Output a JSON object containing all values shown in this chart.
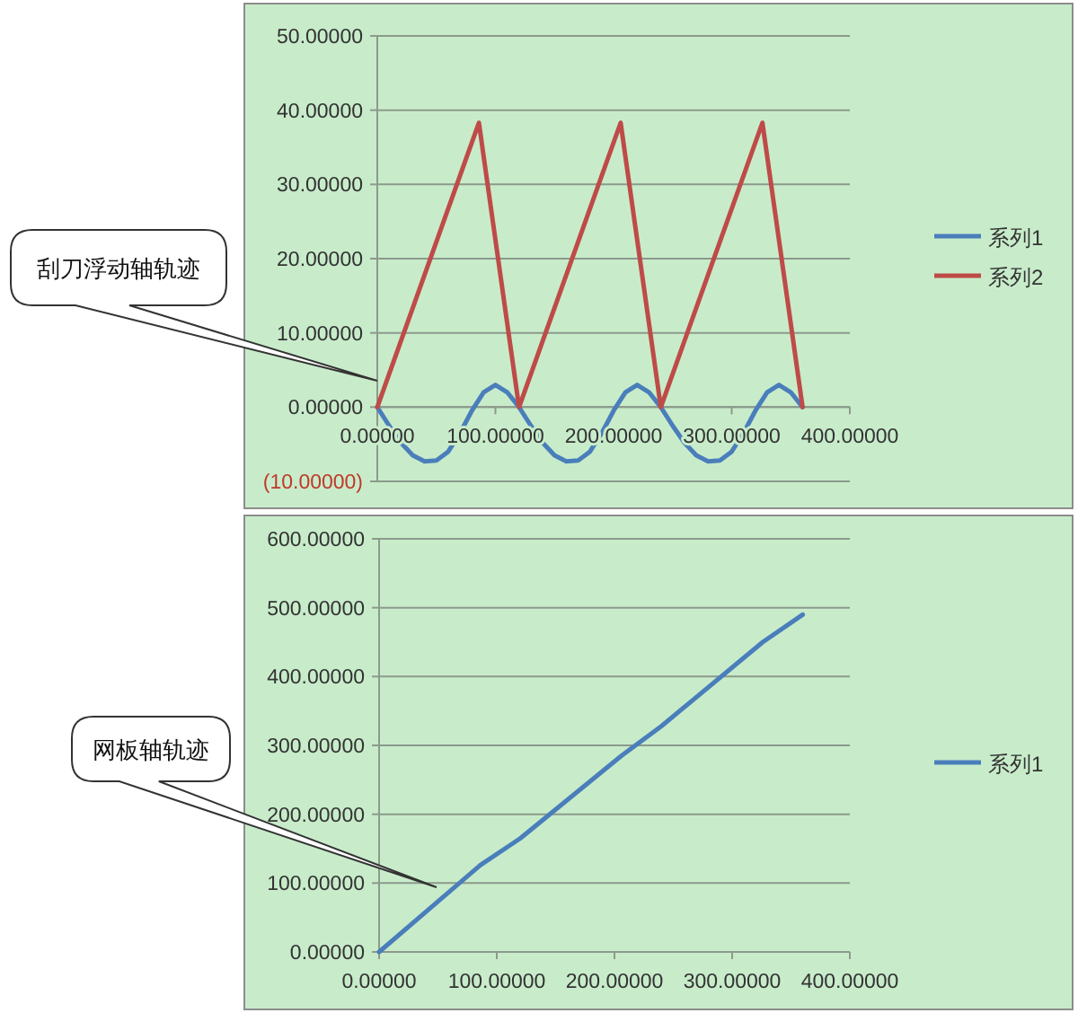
{
  "chart_data": [
    {
      "type": "line",
      "annotations": [
        "刮刀浮动轴轨迹"
      ],
      "xlim": [
        0,
        400
      ],
      "xticks": [
        {
          "value": 0,
          "label": "0.00000"
        },
        {
          "value": 100,
          "label": "100.00000"
        },
        {
          "value": 200,
          "label": "200.00000"
        },
        {
          "value": 300,
          "label": "300.00000"
        },
        {
          "value": 400,
          "label": "400.00000"
        }
      ],
      "ylim": [
        -10,
        50
      ],
      "yticks": [
        {
          "value": -10,
          "label": "(10.00000)"
        },
        {
          "value": 0,
          "label": "0.00000"
        },
        {
          "value": 10,
          "label": "10.00000"
        },
        {
          "value": 20,
          "label": "20.00000"
        },
        {
          "value": 30,
          "label": "30.00000"
        },
        {
          "value": 40,
          "label": "40.00000"
        },
        {
          "value": 50,
          "label": "50.00000"
        }
      ],
      "grid": "y",
      "legend": "right",
      "marker": "none",
      "line_style": "solid",
      "series": [
        {
          "name": "系列1",
          "color": "#4a7ebb",
          "x": [
            0,
            10,
            20,
            30,
            40,
            50,
            60,
            70,
            80,
            90,
            100,
            110,
            120,
            130,
            140,
            150,
            160,
            170,
            180,
            190,
            200,
            210,
            220,
            230,
            240,
            250,
            260,
            270,
            280,
            290,
            300,
            310,
            320,
            330,
            340,
            350,
            360
          ],
          "values": [
            0,
            -2.5,
            -4.8,
            -6.5,
            -7.3,
            -7.2,
            -6,
            -3.5,
            -0.5,
            2,
            3,
            2,
            0,
            -2.5,
            -4.8,
            -6.5,
            -7.3,
            -7.2,
            -6,
            -3.5,
            -0.5,
            2,
            3,
            2,
            0,
            -2.5,
            -4.8,
            -6.5,
            -7.3,
            -7.2,
            -6,
            -3.5,
            -0.5,
            2,
            3,
            2,
            0
          ]
        },
        {
          "name": "系列2",
          "color": "#be4b48",
          "x": [
            0,
            86,
            120,
            206,
            240,
            326,
            360
          ],
          "values": [
            0,
            38.3,
            0,
            38.3,
            0,
            38.3,
            0
          ]
        }
      ]
    },
    {
      "type": "line",
      "annotations": [
        "网板轴轨迹"
      ],
      "xlim": [
        0,
        400
      ],
      "xticks": [
        {
          "value": 0,
          "label": "0.00000"
        },
        {
          "value": 100,
          "label": "100.00000"
        },
        {
          "value": 200,
          "label": "200.00000"
        },
        {
          "value": 300,
          "label": "300.00000"
        },
        {
          "value": 400,
          "label": "400.00000"
        }
      ],
      "ylim": [
        0,
        600
      ],
      "yticks": [
        {
          "value": 0,
          "label": "0.00000"
        },
        {
          "value": 100,
          "label": "100.00000"
        },
        {
          "value": 200,
          "label": "200.00000"
        },
        {
          "value": 300,
          "label": "300.00000"
        },
        {
          "value": 400,
          "label": "400.00000"
        },
        {
          "value": 500,
          "label": "500.00000"
        },
        {
          "value": 600,
          "label": "600.00000"
        }
      ],
      "grid": "y",
      "legend": "right",
      "marker": "none",
      "line_style": "solid",
      "series": [
        {
          "name": "系列1",
          "color": "#4a7ebb",
          "x": [
            0,
            86,
            120,
            206,
            240,
            326,
            360
          ],
          "values": [
            0,
            126,
            165,
            285,
            328,
            450,
            490
          ]
        }
      ]
    }
  ]
}
